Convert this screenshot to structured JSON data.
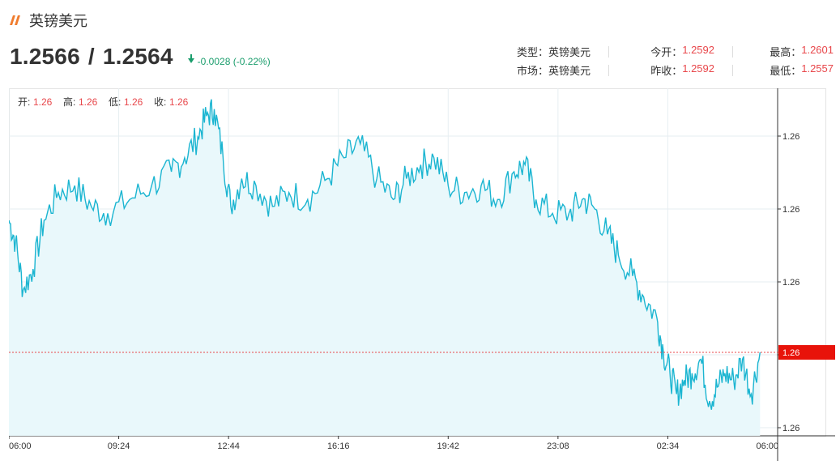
{
  "header": {
    "title": "英镑美元",
    "bid": "1.2566",
    "separator": "/",
    "ask": "1.2564",
    "change": "-0.0028 (-0.22%)"
  },
  "stats": {
    "type_label": "类型：",
    "type_value": "英镑美元",
    "market_label": "市场：",
    "market_value": "英镑美元",
    "open_label": "今开：",
    "open_value": "1.2592",
    "prev_close_label": "昨收：",
    "prev_close_value": "1.2592",
    "high_label": "最高：",
    "high_value": "1.2601",
    "low_label": "最低：",
    "low_value": "1.2557"
  },
  "ohlc": {
    "open_label": "开:",
    "open_value": "1.26",
    "high_label": "高:",
    "high_value": "1.26",
    "low_label": "低:",
    "low_value": "1.26",
    "close_label": "收:",
    "close_value": "1.26"
  },
  "colors": {
    "line": "#1bb5d1",
    "fill": "#e9f8fb",
    "grid": "#e6eef2",
    "price_line": "#e8474b",
    "price_tag": "#e8130a",
    "up_red": "#e8474b",
    "down_green": "#1a9d6c"
  },
  "chart_data": {
    "type": "area",
    "x_ticks": [
      "06:00",
      "09:24",
      "12:44",
      "16:16",
      "19:42",
      "23:08",
      "02:34",
      "06:00"
    ],
    "y_ticks": [
      "1.26",
      "1.26",
      "1.26",
      "1.26",
      "1.26"
    ],
    "y_range": [
      1.2554,
      1.2604
    ],
    "current_price_label": "1.26",
    "current_price": 1.2566,
    "series": [
      {
        "values": [
          [
            0,
            1.2585
          ],
          [
            0.06,
            1.2582
          ],
          [
            0.13,
            1.2575
          ],
          [
            0.22,
            1.2578
          ],
          [
            0.32,
            1.2585
          ],
          [
            0.45,
            1.2589
          ],
          [
            0.6,
            1.259
          ],
          [
            0.75,
            1.2587
          ],
          [
            0.9,
            1.2586
          ],
          [
            1.1,
            1.2588
          ],
          [
            1.3,
            1.259
          ],
          [
            1.48,
            1.2592
          ],
          [
            1.6,
            1.2594
          ],
          [
            1.72,
            1.2597
          ],
          [
            1.8,
            1.26
          ],
          [
            1.87,
            1.2601
          ],
          [
            1.95,
            1.2594
          ],
          [
            2.02,
            1.2587
          ],
          [
            2.12,
            1.2591
          ],
          [
            2.25,
            1.259
          ],
          [
            2.4,
            1.2587
          ],
          [
            2.55,
            1.2589
          ],
          [
            2.72,
            1.2588
          ],
          [
            2.9,
            1.2591
          ],
          [
            3.05,
            1.2594
          ],
          [
            3.2,
            1.2596
          ],
          [
            3.35,
            1.2591
          ],
          [
            3.5,
            1.2588
          ],
          [
            3.62,
            1.2591
          ],
          [
            3.75,
            1.2593
          ],
          [
            3.87,
            1.2594
          ],
          [
            4.0,
            1.259
          ],
          [
            4.15,
            1.2589
          ],
          [
            4.3,
            1.259
          ],
          [
            4.45,
            1.2588
          ],
          [
            4.6,
            1.2592
          ],
          [
            4.7,
            1.2593
          ],
          [
            4.8,
            1.2588
          ],
          [
            4.95,
            1.2586
          ],
          [
            5.1,
            1.2586
          ],
          [
            5.22,
            1.2588
          ],
          [
            5.32,
            1.2587
          ],
          [
            5.45,
            1.2583
          ],
          [
            5.55,
            1.258
          ],
          [
            5.68,
            1.2577
          ],
          [
            5.78,
            1.2574
          ],
          [
            5.9,
            1.2571
          ],
          [
            5.96,
            1.2566
          ],
          [
            6.02,
            1.2563
          ],
          [
            6.08,
            1.256
          ],
          [
            6.15,
            1.2562
          ],
          [
            6.22,
            1.2563
          ],
          [
            6.3,
            1.2565
          ],
          [
            6.38,
            1.2559
          ],
          [
            6.45,
            1.2561
          ],
          [
            6.52,
            1.2563
          ],
          [
            6.6,
            1.2562
          ],
          [
            6.68,
            1.2565
          ],
          [
            6.76,
            1.256
          ],
          [
            6.84,
            1.2566
          ]
        ]
      }
    ]
  }
}
